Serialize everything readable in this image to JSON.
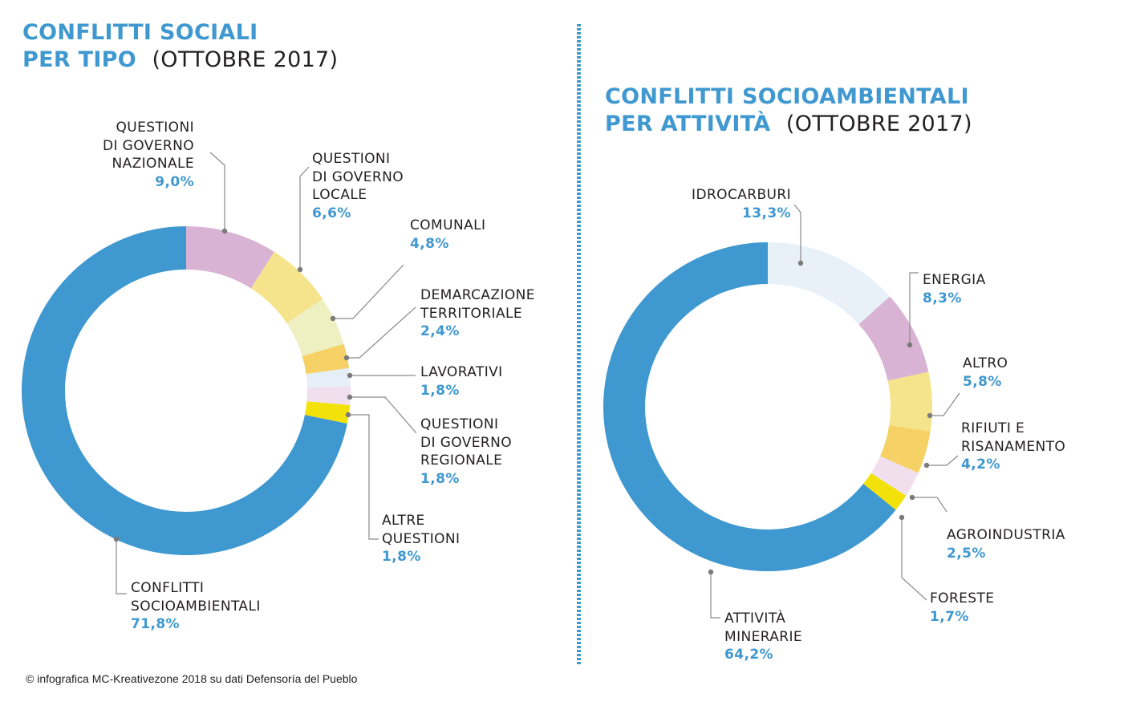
{
  "colors": {
    "accent": "#3f98cf",
    "text": "#231f20"
  },
  "credit": "© infografica MC-Kreativezone 2018 su dati Defensoría del Pueblo",
  "chart_data": [
    {
      "type": "pie",
      "title_line1": "CONFLITTI SOCIALI",
      "title_line2": "PER TIPO",
      "title_period": "(OTTOBRE 2017)",
      "slices": [
        {
          "label": "QUESTIONI\nDI GOVERNO\nNAZIONALE",
          "value": 9.0,
          "value_label": "9,0%",
          "color": "#d9b3d3"
        },
        {
          "label": "QUESTIONI\nDI GOVERNO\nLOCALE",
          "value": 6.6,
          "value_label": "6,6%",
          "color": "#f5e48c"
        },
        {
          "label": "COMUNALI",
          "value": 4.8,
          "value_label": "4,8%",
          "color": "#eef0c2"
        },
        {
          "label": "DEMARCAZIONE\nTERRITORIALE",
          "value": 2.4,
          "value_label": "2,4%",
          "color": "#f5d166"
        },
        {
          "label": "LAVORATIVI",
          "value": 1.8,
          "value_label": "1,8%",
          "color": "#e6eef7"
        },
        {
          "label": "QUESTIONI\nDI GOVERNO\nREGIONALE",
          "value": 1.8,
          "value_label": "1,8%",
          "color": "#f1dfee"
        },
        {
          "label": "ALTRE\nQUESTIONI",
          "value": 1.8,
          "value_label": "1,8%",
          "color": "#f2e20a"
        },
        {
          "label": "CONFLITTI\nSOCIOAMBIENTALI",
          "value": 71.8,
          "value_label": "71,8%",
          "color": "#3f98cf"
        }
      ]
    },
    {
      "type": "pie",
      "title_line1": "CONFLITTI SOCIOAMBIENTALI",
      "title_line2": "PER ATTIVITÀ",
      "title_period": "(OTTOBRE 2017)",
      "slices": [
        {
          "label": "IDROCARBURI",
          "value": 13.3,
          "value_label": "13,3%",
          "color": "#e8f0f8"
        },
        {
          "label": "ENERGIA",
          "value": 8.3,
          "value_label": "8,3%",
          "color": "#d9b3d3"
        },
        {
          "label": "ALTRO",
          "value": 5.8,
          "value_label": "5,8%",
          "color": "#f5e48c"
        },
        {
          "label": "RIFIUTI E\nRISANAMENTO",
          "value": 4.2,
          "value_label": "4,2%",
          "color": "#f5d166"
        },
        {
          "label": "AGROINDUSTRIA",
          "value": 2.5,
          "value_label": "2,5%",
          "color": "#f1dfee"
        },
        {
          "label": "FORESTE",
          "value": 1.7,
          "value_label": "1,7%",
          "color": "#f2e20a"
        },
        {
          "label": "ATTIVITÀ\nMINERARIE",
          "value": 64.2,
          "value_label": "64,2%",
          "color": "#3f98cf"
        }
      ]
    }
  ]
}
